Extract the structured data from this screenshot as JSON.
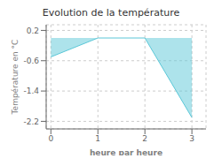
{
  "chart_data": {
    "type": "area",
    "title": "Evolution de la température",
    "xlabel": "heure par heure",
    "ylabel": "Température en °C",
    "x": [
      0,
      1,
      2,
      3
    ],
    "values": [
      -0.5,
      0.0,
      0.0,
      -2.1
    ],
    "color": "#5bc8d8",
    "xlim": [
      -0.1,
      3.3
    ],
    "ylim": [
      -2.4,
      0.35
    ],
    "xticks": [
      0,
      1,
      2,
      3
    ],
    "yticks": [
      0.2,
      -0.6,
      -1.4,
      -2.2
    ],
    "grid": true
  }
}
